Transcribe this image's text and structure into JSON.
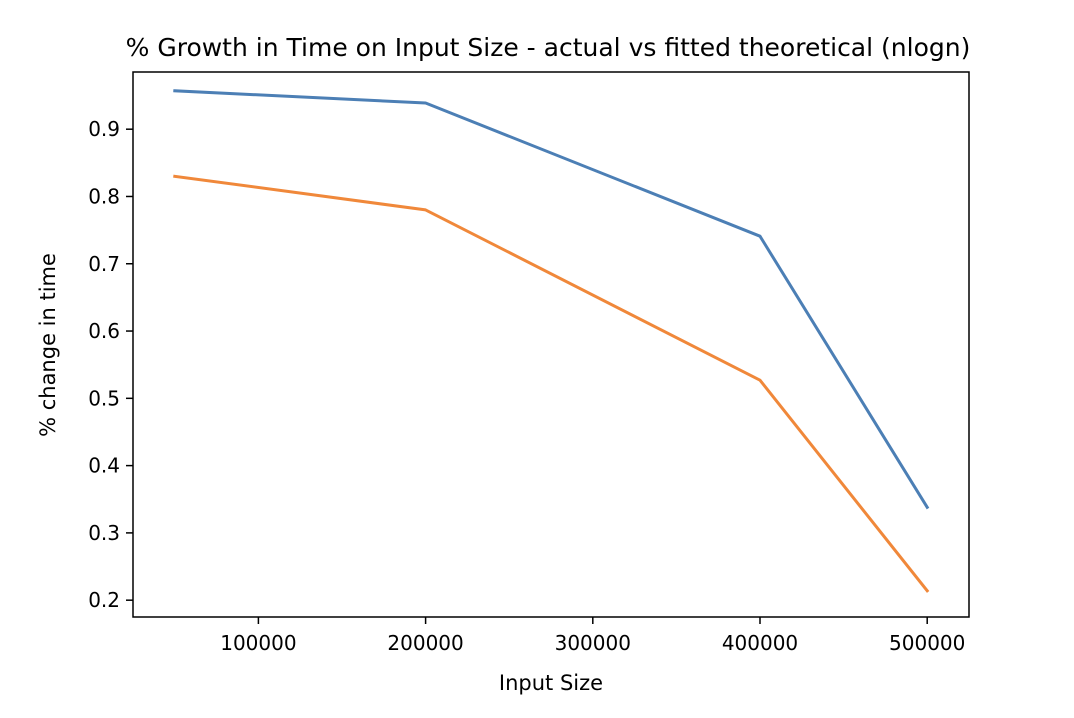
{
  "chart_data": {
    "type": "line",
    "title": "% Growth in Time on Input Size - actual vs fitted theoretical (nlogn)",
    "xlabel": "Input Size",
    "ylabel": "% change in time",
    "x": [
      50000,
      200000,
      400000,
      500000
    ],
    "xlim": [
      25000,
      525000
    ],
    "ylim": [
      0.175,
      0.985
    ],
    "x_ticks": [
      100000,
      200000,
      300000,
      400000,
      500000
    ],
    "x_tick_labels": [
      "100000",
      "200000",
      "300000",
      "400000",
      "500000"
    ],
    "y_ticks": [
      0.2,
      0.3,
      0.4,
      0.5,
      0.6,
      0.7,
      0.8,
      0.9
    ],
    "y_tick_labels": [
      "0.2",
      "0.3",
      "0.4",
      "0.5",
      "0.6",
      "0.7",
      "0.8",
      "0.9"
    ],
    "grid": false,
    "series": [
      {
        "values": [
          0.957,
          0.939,
          0.741,
          0.338
        ],
        "color": "#4c7fb5"
      },
      {
        "values": [
          0.83,
          0.78,
          0.527,
          0.214
        ],
        "color": "#f0883a"
      }
    ]
  }
}
